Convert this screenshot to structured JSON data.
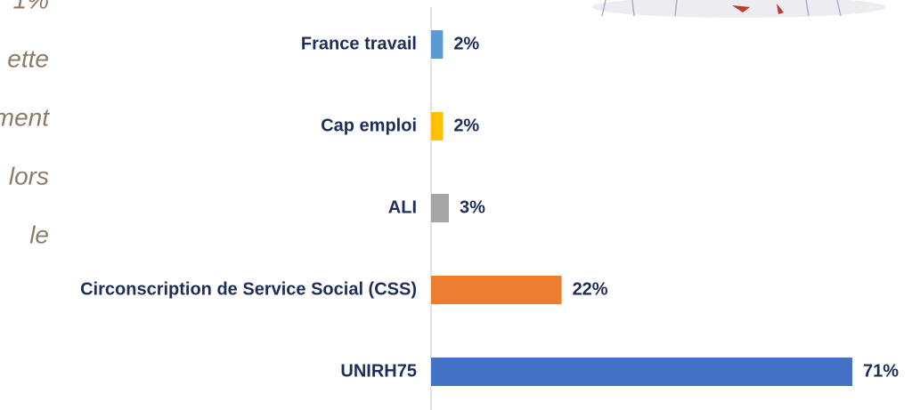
{
  "side_text": [
    "1%",
    "ette",
    "ment",
    "lors",
    "le"
  ],
  "chart_data": {
    "type": "hbar",
    "categories": [
      "France travail",
      "Cap emploi",
      "ALI",
      "Circonscription de Service Social (CSS)",
      "UNIRH75"
    ],
    "values": [
      2,
      2,
      3,
      22,
      71
    ],
    "value_labels": [
      "2%",
      "2%",
      "3%",
      "22%",
      "71%"
    ],
    "colors": [
      "#5b9bd5",
      "#ffc000",
      "#a5a5a5",
      "#ed7d31",
      "#4472c4"
    ],
    "xlim": [
      0,
      71
    ]
  }
}
